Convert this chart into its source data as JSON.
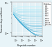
{
  "title": "",
  "xlabel": "Reynolds number",
  "ylabel": "Pressure drop coefficient",
  "xscale": "log",
  "yscale": "log",
  "xlim": [
    2000,
    100000000
  ],
  "ylim": [
    0.008,
    0.1
  ],
  "background_color": "#e8f4f8",
  "plot_bg_color": "#ddeef5",
  "grid_color": "#ffffff",
  "relative_roughness": [
    0.0,
    5e-06,
    1e-05,
    5e-05,
    0.0001,
    0.0002,
    0.0004,
    0.0006,
    0.001,
    0.002,
    0.004,
    0.006,
    0.008,
    0.01,
    0.015,
    0.02,
    0.025,
    0.03,
    0.04,
    0.05
  ],
  "legend_title": "Relative\nroughness",
  "legend_labels": [
    "0",
    "0.000005",
    "0.00001",
    "0.00005",
    "0.0001",
    "0.0002",
    "0.0004",
    "0.0006",
    "0.001",
    "0.002",
    "0.004",
    "0.006",
    "0.008",
    "0.01",
    "0.015",
    "0.02",
    "0.025",
    "0.03",
    "0.04",
    "0.05"
  ]
}
